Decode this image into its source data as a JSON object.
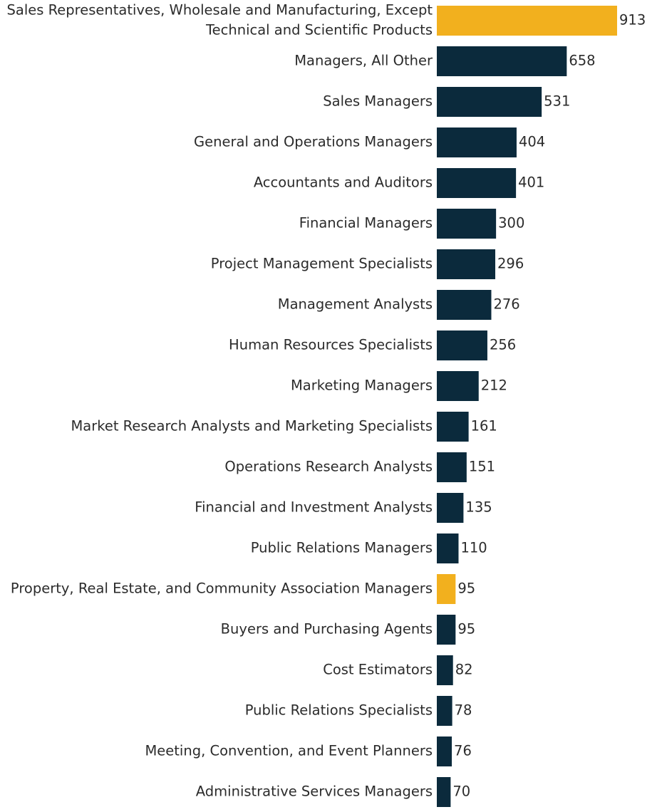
{
  "chart_data": {
    "type": "bar",
    "orientation": "horizontal",
    "title": "",
    "xlabel": "",
    "ylabel": "",
    "xlim": [
      0,
      913
    ],
    "grid": false,
    "colors": {
      "default": "#0b2a3c",
      "highlight": "#f2b01e"
    },
    "categories": [
      [
        "Sales Representatives, Wholesale and Manufacturing, Except",
        "Technical and Scientific Products"
      ],
      [
        "Managers, All Other"
      ],
      [
        "Sales Managers"
      ],
      [
        "General and Operations Managers"
      ],
      [
        "Accountants and Auditors"
      ],
      [
        "Financial Managers"
      ],
      [
        "Project Management Specialists"
      ],
      [
        "Management Analysts"
      ],
      [
        "Human Resources Specialists"
      ],
      [
        "Marketing Managers"
      ],
      [
        "Market Research Analysts and Marketing Specialists"
      ],
      [
        "Operations Research Analysts"
      ],
      [
        "Financial and Investment Analysts"
      ],
      [
        "Public Relations Managers"
      ],
      [
        "Property, Real Estate, and Community Association Managers"
      ],
      [
        "Buyers and Purchasing Agents"
      ],
      [
        "Cost Estimators"
      ],
      [
        "Public Relations Specialists"
      ],
      [
        "Meeting, Convention, and Event Planners"
      ],
      [
        "Administrative Services Managers"
      ]
    ],
    "values": [
      913,
      658,
      531,
      404,
      401,
      300,
      296,
      276,
      256,
      212,
      161,
      151,
      135,
      110,
      95,
      95,
      82,
      78,
      76,
      70
    ],
    "highlighted": [
      true,
      false,
      false,
      false,
      false,
      false,
      false,
      false,
      false,
      false,
      false,
      false,
      false,
      false,
      true,
      false,
      false,
      false,
      false,
      false
    ]
  }
}
